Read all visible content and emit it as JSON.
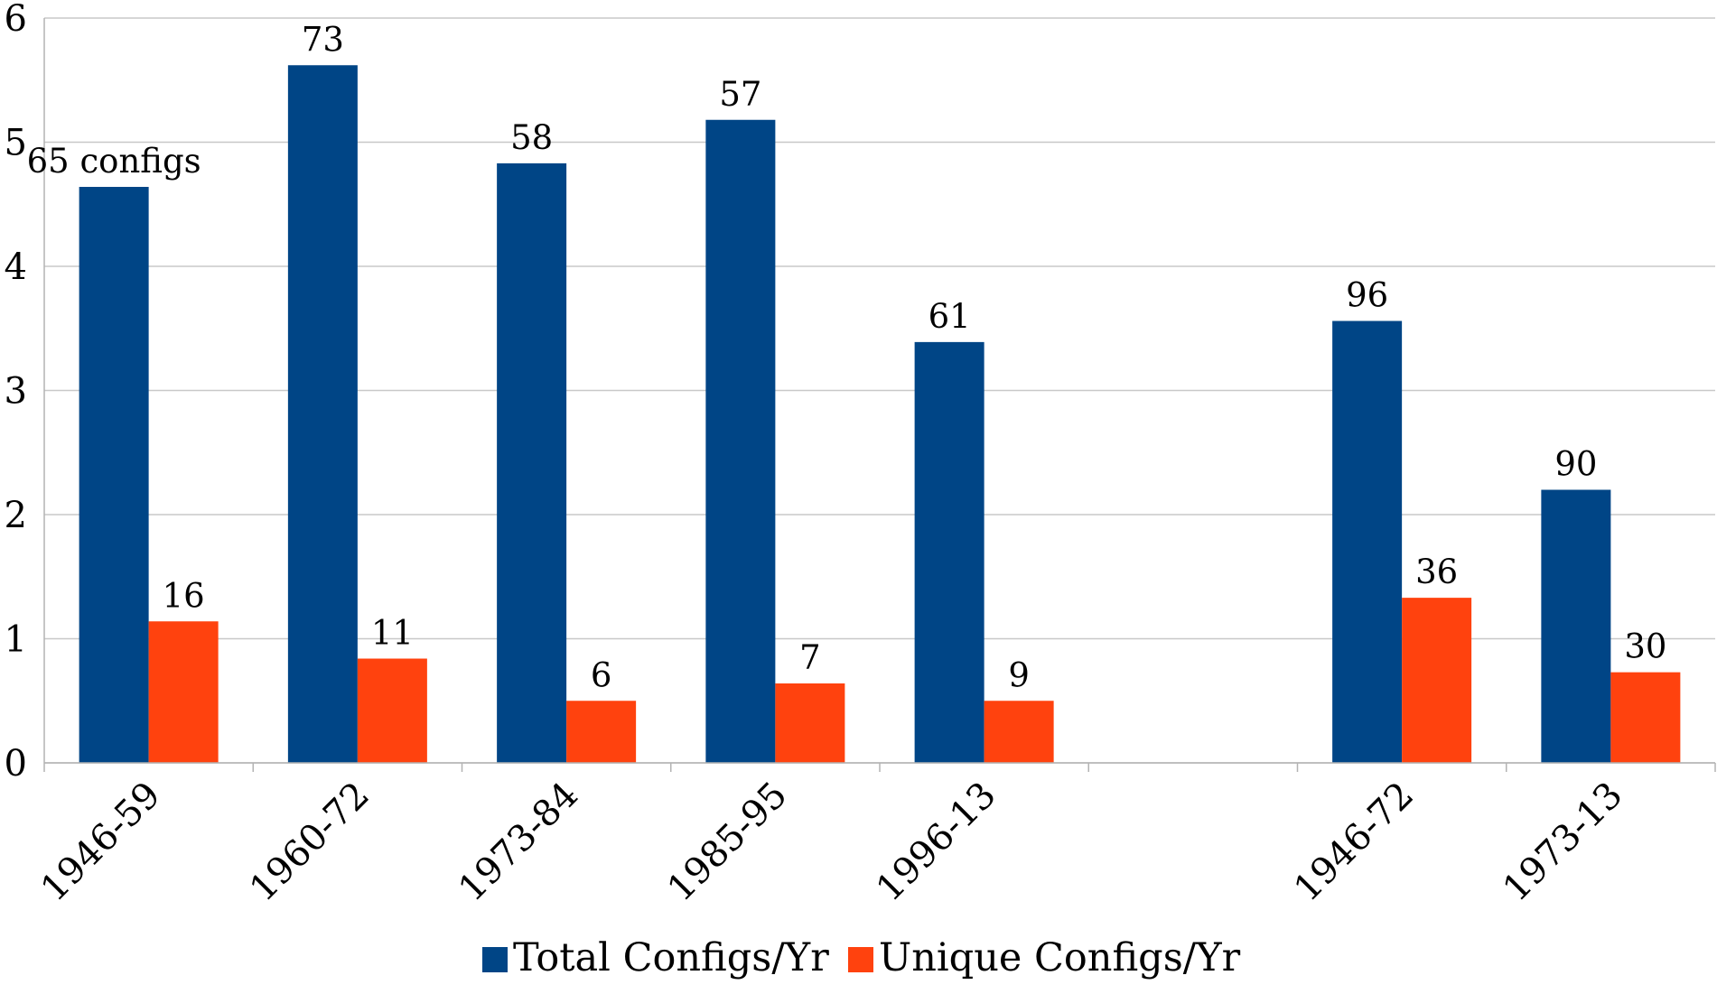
{
  "chart_data": {
    "type": "bar",
    "categories": [
      "1946-59",
      "1960-72",
      "1973-84",
      "1985-95",
      "1996-13",
      "",
      "1946-72",
      "1973-13"
    ],
    "series": [
      {
        "name": "Total Configs/Yr",
        "color": "#004586",
        "values": [
          4.64,
          5.62,
          4.83,
          5.18,
          3.39,
          null,
          3.56,
          2.2
        ],
        "labels": [
          "65 configs",
          "73",
          "58",
          "57",
          "61",
          "",
          "96",
          "90"
        ]
      },
      {
        "name": "Unique Configs/Yr",
        "color": "#ff420e",
        "values": [
          1.14,
          0.84,
          0.5,
          0.64,
          0.5,
          null,
          1.33,
          0.73
        ],
        "labels": [
          "16",
          "11",
          "6",
          "7",
          "9",
          "",
          "36",
          "30"
        ]
      }
    ],
    "ylim": [
      0,
      6
    ],
    "yticks": [
      "0",
      "1",
      "2",
      "3",
      "4",
      "5",
      "6"
    ],
    "grid": true,
    "legend_position": "bottom"
  }
}
